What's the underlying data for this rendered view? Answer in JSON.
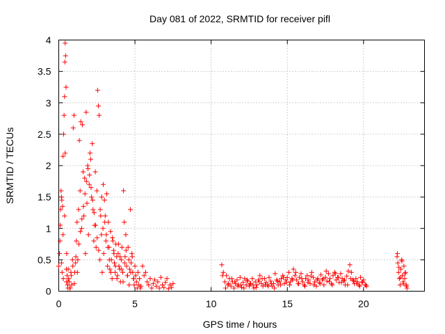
{
  "chart_data": {
    "type": "scatter",
    "title": "Day 081 of 2022, SRMTID for receiver pifl",
    "xlabel": "GPS time / hours",
    "ylabel": "SRMTID / TECUs",
    "xlim": [
      0,
      24
    ],
    "ylim": [
      0,
      4
    ],
    "xticks": [
      0,
      5,
      10,
      15,
      20
    ],
    "xtick_labels": [
      "0",
      "5",
      "10",
      "15",
      "20"
    ],
    "yticks": [
      0,
      0.5,
      1,
      1.5,
      2,
      2.5,
      3,
      3.5,
      4
    ],
    "ytick_labels": [
      "0",
      "0.5",
      "1",
      "1.5",
      "2",
      "2.5",
      "3",
      "3.5",
      "4"
    ],
    "grid": true,
    "marker": "+",
    "series": [
      {
        "name": "SRMTID",
        "color": "#ff0000",
        "x": [
          0.0,
          0.05,
          0.1,
          0.12,
          0.15,
          0.18,
          0.2,
          0.22,
          0.25,
          0.28,
          0.3,
          0.32,
          0.35,
          0.38,
          0.4,
          0.42,
          0.45,
          0.48,
          0.5,
          0.52,
          0.55,
          0.58,
          0.6,
          0.62,
          0.65,
          0.7,
          0.75,
          0.8,
          0.85,
          0.9,
          0.95,
          1.0,
          1.05,
          1.1,
          1.15,
          1.2,
          1.25,
          1.3,
          1.35,
          1.4,
          1.45,
          1.5,
          1.55,
          1.6,
          1.65,
          1.7,
          1.75,
          1.8,
          1.85,
          1.9,
          1.95,
          2.0,
          2.05,
          2.1,
          2.15,
          2.2,
          2.25,
          2.3,
          2.35,
          2.4,
          2.45,
          2.5,
          2.55,
          2.6,
          2.65,
          2.7,
          2.75,
          2.8,
          2.85,
          2.9,
          2.95,
          3.0,
          3.05,
          3.1,
          3.15,
          3.2,
          3.25,
          3.3,
          3.35,
          3.4,
          3.45,
          3.5,
          3.55,
          3.6,
          3.65,
          3.7,
          3.75,
          3.8,
          3.85,
          3.9,
          3.95,
          4.0,
          4.05,
          4.1,
          4.15,
          4.2,
          4.25,
          4.3,
          4.35,
          4.4,
          4.45,
          4.5,
          4.55,
          4.6,
          4.65,
          4.7,
          4.75,
          4.8,
          4.85,
          4.9,
          4.95,
          5.0,
          5.05,
          5.1,
          5.15,
          5.2,
          5.25,
          5.3,
          5.35,
          5.4,
          5.5,
          5.6,
          5.7,
          5.8,
          5.9,
          6.0,
          6.1,
          6.2,
          6.3,
          6.4,
          6.5,
          6.6,
          6.7,
          6.8,
          6.9,
          7.0,
          7.1,
          7.2,
          7.3,
          7.4,
          7.5,
          0.08,
          0.18,
          0.28,
          0.38,
          0.42,
          0.5,
          0.6,
          0.72,
          0.82,
          0.92,
          1.02,
          1.12,
          1.22,
          1.32,
          1.42,
          1.52,
          1.62,
          1.72,
          1.82,
          1.92,
          2.02,
          2.12,
          2.22,
          2.32,
          2.42,
          2.52,
          2.62,
          2.72,
          2.82,
          2.92,
          3.02,
          3.12,
          3.22,
          3.32,
          3.42,
          3.52,
          3.62,
          3.72,
          3.82,
          3.92,
          4.02,
          4.12,
          4.22,
          4.32,
          4.42,
          4.52,
          4.62,
          4.72,
          4.82,
          4.92,
          10.7,
          10.8,
          10.9,
          11.0,
          11.1,
          11.2,
          11.3,
          11.4,
          11.5,
          11.6,
          11.7,
          11.8,
          11.9,
          12.0,
          12.1,
          12.2,
          12.3,
          12.4,
          12.5,
          12.6,
          12.7,
          12.8,
          12.9,
          13.0,
          13.1,
          13.2,
          13.3,
          13.4,
          13.5,
          13.6,
          13.7,
          13.8,
          13.9,
          14.0,
          14.1,
          14.2,
          14.3,
          14.4,
          14.5,
          14.6,
          14.7,
          14.8,
          14.9,
          15.0,
          15.1,
          15.2,
          15.3,
          15.4,
          15.5,
          15.6,
          15.7,
          15.8,
          15.9,
          16.0,
          16.1,
          16.2,
          16.3,
          16.4,
          16.5,
          16.6,
          16.7,
          16.8,
          16.9,
          17.0,
          17.1,
          17.2,
          17.3,
          17.4,
          17.5,
          17.6,
          17.7,
          17.8,
          17.9,
          18.0,
          18.1,
          18.2,
          18.3,
          18.4,
          18.5,
          18.6,
          18.7,
          18.8,
          18.9,
          19.0,
          19.1,
          19.2,
          19.3,
          19.4,
          19.5,
          19.6,
          19.7,
          19.8,
          19.9,
          20.0,
          20.1,
          20.2,
          10.75,
          10.95,
          11.15,
          11.35,
          11.55,
          11.75,
          11.95,
          12.15,
          12.35,
          12.55,
          12.75,
          12.95,
          13.15,
          13.35,
          13.55,
          13.75,
          13.95,
          14.15,
          14.35,
          14.55,
          14.75,
          14.95,
          15.15,
          15.35,
          15.55,
          15.75,
          15.95,
          16.15,
          16.35,
          16.55,
          16.75,
          16.95,
          17.15,
          17.35,
          17.55,
          17.75,
          17.95,
          18.15,
          18.35,
          18.55,
          18.75,
          18.95,
          19.15,
          19.35,
          19.55,
          19.75,
          19.95,
          20.15,
          22.2,
          22.25,
          22.3,
          22.35,
          22.4,
          22.45,
          22.5,
          22.55,
          22.6,
          22.65,
          22.7,
          22.75,
          22.8,
          22.85,
          22.22,
          22.32,
          22.42,
          22.52,
          22.62,
          22.72,
          22.82
        ],
        "y": [
          0.4,
          0.6,
          1.05,
          1.3,
          1.6,
          0.45,
          1.45,
          0.3,
          1.35,
          2.15,
          0.2,
          2.5,
          2.8,
          3.1,
          3.65,
          3.95,
          3.75,
          3.25,
          0.15,
          0.6,
          0.25,
          0.1,
          0.05,
          0.35,
          0.2,
          0.15,
          0.05,
          0.3,
          0.1,
          0.5,
          2.6,
          2.8,
          0.3,
          0.45,
          0.8,
          1.1,
          0.5,
          1.3,
          2.4,
          1.6,
          2.7,
          1.0,
          2.65,
          1.9,
          1.2,
          1.8,
          0.6,
          2.85,
          1.4,
          2.0,
          0.9,
          1.7,
          2.2,
          2.1,
          1.5,
          2.35,
          1.3,
          0.8,
          1.05,
          1.9,
          0.7,
          1.6,
          3.2,
          2.95,
          2.8,
          0.5,
          1.2,
          0.9,
          0.3,
          1.0,
          0.6,
          1.45,
          1.2,
          0.8,
          1.55,
          0.4,
          1.1,
          0.7,
          0.35,
          0.95,
          0.5,
          0.2,
          0.8,
          0.65,
          0.45,
          0.3,
          0.75,
          0.55,
          0.25,
          0.6,
          0.4,
          0.35,
          0.15,
          0.5,
          0.7,
          0.3,
          1.6,
          1.1,
          0.55,
          0.9,
          0.4,
          0.25,
          0.7,
          0.5,
          0.35,
          1.3,
          0.45,
          0.6,
          0.3,
          0.2,
          0.1,
          0.4,
          0.25,
          0.15,
          0.05,
          0.3,
          0.1,
          0.2,
          0.05,
          0.08,
          0.4,
          0.25,
          0.3,
          0.15,
          0.1,
          0.2,
          0.05,
          0.12,
          0.18,
          0.08,
          0.15,
          0.05,
          0.22,
          0.1,
          0.06,
          0.14,
          0.2,
          0.04,
          0.1,
          0.06,
          0.12,
          0.8,
          1.5,
          0.9,
          1.2,
          2.2,
          0.35,
          0.15,
          0.05,
          0.25,
          0.4,
          0.12,
          0.55,
          0.3,
          0.75,
          0.95,
          1.15,
          1.35,
          1.55,
          1.75,
          1.95,
          1.85,
          1.65,
          1.45,
          1.25,
          1.05,
          0.85,
          0.65,
          1.3,
          1.5,
          1.7,
          1.1,
          0.9,
          0.7,
          0.5,
          0.3,
          0.85,
          0.6,
          0.4,
          0.2,
          0.75,
          0.55,
          0.35,
          0.15,
          0.45,
          0.65,
          0.25,
          0.1,
          0.3,
          0.55,
          0.2,
          0.42,
          0.3,
          0.15,
          0.25,
          0.1,
          0.2,
          0.08,
          0.15,
          0.05,
          0.12,
          0.18,
          0.1,
          0.22,
          0.06,
          0.14,
          0.2,
          0.1,
          0.16,
          0.08,
          0.12,
          0.2,
          0.05,
          0.15,
          0.1,
          0.18,
          0.25,
          0.12,
          0.08,
          0.2,
          0.14,
          0.1,
          0.22,
          0.16,
          0.08,
          0.12,
          0.28,
          0.18,
          0.1,
          0.15,
          0.2,
          0.25,
          0.12,
          0.18,
          0.22,
          0.3,
          0.15,
          0.2,
          0.35,
          0.25,
          0.18,
          0.12,
          0.22,
          0.28,
          0.15,
          0.1,
          0.2,
          0.25,
          0.18,
          0.12,
          0.3,
          0.22,
          0.15,
          0.08,
          0.2,
          0.14,
          0.26,
          0.18,
          0.1,
          0.22,
          0.16,
          0.28,
          0.2,
          0.12,
          0.25,
          0.3,
          0.18,
          0.22,
          0.14,
          0.28,
          0.2,
          0.16,
          0.1,
          0.24,
          0.32,
          0.42,
          0.3,
          0.18,
          0.12,
          0.2,
          0.15,
          0.1,
          0.22,
          0.14,
          0.18,
          0.1,
          0.08,
          0.25,
          0.05,
          0.12,
          0.2,
          0.15,
          0.08,
          0.1,
          0.05,
          0.18,
          0.12,
          0.1,
          0.06,
          0.15,
          0.2,
          0.1,
          0.08,
          0.12,
          0.05,
          0.16,
          0.1,
          0.22,
          0.14,
          0.1,
          0.18,
          0.3,
          0.12,
          0.2,
          0.08,
          0.14,
          0.24,
          0.1,
          0.18,
          0.12,
          0.2,
          0.32,
          0.15,
          0.1,
          0.28,
          0.22,
          0.14,
          0.18,
          0.1,
          0.2,
          0.16,
          0.12,
          0.08,
          0.15,
          0.1,
          0.55,
          0.45,
          0.3,
          0.2,
          0.1,
          0.35,
          0.5,
          0.25,
          0.15,
          0.4,
          0.2,
          0.3,
          0.1,
          0.05,
          0.6,
          0.38,
          0.22,
          0.48,
          0.12,
          0.28,
          0.08
        ]
      }
    ]
  }
}
